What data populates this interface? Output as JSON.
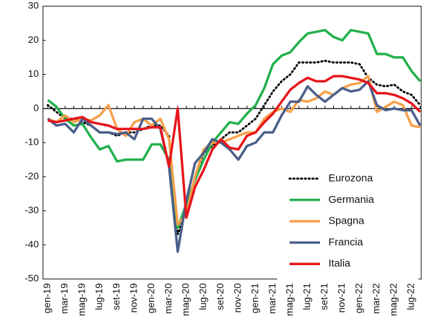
{
  "chart_data": {
    "type": "line",
    "categories": [
      "gen-19",
      null,
      "mar-19",
      null,
      "mag-19",
      null,
      "lug-19",
      null,
      "set-19",
      null,
      "nov-19",
      null,
      "gen-20",
      null,
      "mar-20",
      null,
      "mag-20",
      null,
      "lug-20",
      null,
      "set-20",
      null,
      "nov-20",
      null,
      "gen-21",
      null,
      "mar-21",
      null,
      "mag-21",
      null,
      "lug-21",
      null,
      "set-21",
      null,
      "nov-21",
      null,
      "gen-22",
      null,
      "mar-22",
      null,
      "mag-22",
      null,
      "lug-22",
      null
    ],
    "series": [
      {
        "name": "Eurozona",
        "color": "#000000",
        "style": "dotted",
        "values": [
          1,
          -1,
          -3,
          -3,
          -4,
          -5,
          -7,
          -7,
          -8,
          -7,
          -7,
          -6,
          -5,
          -5,
          -8,
          -37,
          -30,
          -20,
          -13,
          -11,
          -9,
          -7,
          -7,
          -5,
          -3,
          1,
          5,
          8,
          10,
          13.5,
          13.5,
          13.5,
          14,
          13.5,
          13.5,
          13.5,
          13,
          9,
          7,
          6.5,
          7,
          5,
          4,
          1
        ]
      },
      {
        "name": "Germania",
        "color": "#22b14c",
        "style": "solid",
        "values": [
          2.5,
          0.5,
          -3,
          -5,
          -4.5,
          -8.5,
          -12,
          -11,
          -15.5,
          -15,
          -15,
          -15,
          -10.5,
          -10.5,
          -15,
          -35,
          -28,
          -21,
          -15,
          -10,
          -7,
          -4,
          -4.5,
          -1.5,
          1,
          6,
          13,
          15.5,
          16.5,
          19.5,
          22,
          22.5,
          23,
          21,
          20,
          23,
          22.5,
          22,
          16,
          16,
          15,
          15,
          11,
          8
        ]
      },
      {
        "name": "Spagna",
        "color": "#f7a04a",
        "style": "solid",
        "values": [
          -3,
          -4,
          -2,
          -4,
          -3,
          -3.5,
          -2,
          1,
          -6,
          -8,
          -4,
          -3,
          -5,
          -3,
          -9,
          -34,
          -31,
          -20,
          -12,
          -10,
          -10,
          -9,
          -8,
          -7,
          -7,
          -3,
          -1,
          0,
          -1,
          2.5,
          2,
          3,
          5,
          4,
          6,
          7,
          7.5,
          9.5,
          -1,
          0.5,
          2,
          1,
          -5,
          -5.5
        ]
      },
      {
        "name": "Francia",
        "color": "#4a5f8a",
        "style": "solid",
        "values": [
          -3,
          -5,
          -4.5,
          -7,
          -3,
          -5,
          -7,
          -7,
          -7.5,
          -7,
          -9,
          -3,
          -3,
          -6,
          -17,
          -42,
          -27,
          -16,
          -13,
          -9,
          -10,
          -12,
          -15,
          -11,
          -10,
          -7,
          -7,
          -2,
          2,
          2,
          6.5,
          4,
          2,
          4,
          6,
          5,
          5.5,
          8,
          1,
          -0.5,
          0,
          -0.5,
          -0.5,
          -5
        ]
      },
      {
        "name": "Italia",
        "color": "#e8141b",
        "style": "solid",
        "values": [
          -3.5,
          -4,
          -3.5,
          -3,
          -2.5,
          -4,
          -4.5,
          -5,
          -6,
          -6,
          -6,
          -6,
          -5.5,
          -5.5,
          -17,
          0,
          -32,
          -23,
          -18,
          -12,
          -9,
          -11.5,
          -12,
          -8,
          -7,
          -4,
          -1.5,
          2,
          5.5,
          7.5,
          9,
          8,
          8,
          9.5,
          9.5,
          9,
          8.5,
          7.5,
          4.5,
          4.5,
          4,
          3,
          1.5,
          -1
        ]
      }
    ],
    "ylim": [
      -50,
      30
    ],
    "yticks": [
      -50,
      -40,
      -30,
      -20,
      -10,
      0,
      10,
      20,
      30
    ],
    "grid": false,
    "legend": "lower right"
  }
}
